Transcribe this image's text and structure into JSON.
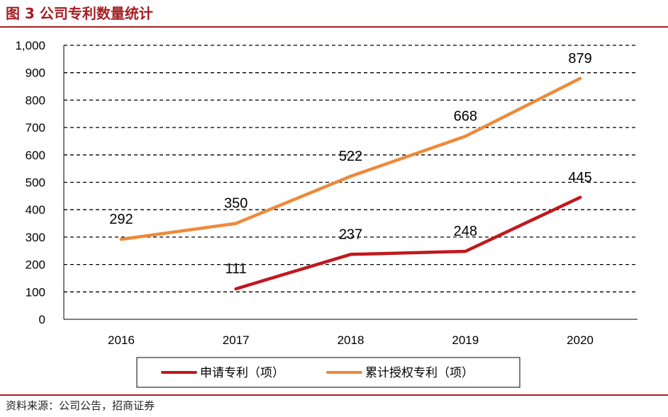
{
  "title": "图 3  公司专利数量统计",
  "source": "资料来源：公司公告，招商证券",
  "colors": {
    "accent": "#a31f24",
    "series1": "#c0181e",
    "series2": "#ee8a3a"
  },
  "chart_data": {
    "type": "line",
    "title": "图 3  公司专利数量统计",
    "xlabel": "",
    "ylabel": "",
    "ylim": [
      0,
      1000
    ],
    "grid": true,
    "legend": "bottom",
    "categories": [
      "2016",
      "2017",
      "2018",
      "2019",
      "2020"
    ],
    "y_ticks": [
      "0",
      "100",
      "200",
      "300",
      "400",
      "500",
      "600",
      "700",
      "800",
      "900",
      "1,000"
    ],
    "series": [
      {
        "name": "申请专利（项）",
        "color": "#c0181e",
        "values": [
          null,
          111,
          237,
          248,
          445
        ]
      },
      {
        "name": "累计授权专利（项）",
        "color": "#ee8a3a",
        "values": [
          292,
          350,
          522,
          668,
          879
        ]
      }
    ]
  }
}
